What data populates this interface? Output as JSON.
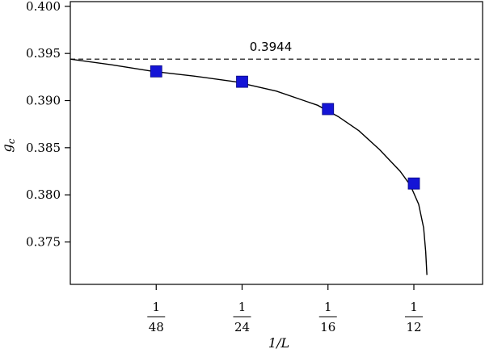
{
  "chart_data": {
    "type": "scatter",
    "xlabel": "1/L",
    "ylabel": "g_c",
    "xlim": [
      0,
      0.1
    ],
    "ylim": [
      0.3705,
      0.4005
    ],
    "y_ticks": [
      "0.400",
      "0.395",
      "0.390",
      "0.385",
      "0.380",
      "0.375"
    ],
    "x_ticks": [
      {
        "num": "1",
        "den": "48",
        "value": 0.020833
      },
      {
        "num": "1",
        "den": "24",
        "value": 0.041667
      },
      {
        "num": "1",
        "den": "16",
        "value": 0.0625
      },
      {
        "num": "1",
        "den": "12",
        "value": 0.083333
      }
    ],
    "series": [
      {
        "marker": "square",
        "color": "#1515d6",
        "points": [
          {
            "x": 0.020833,
            "y": 0.3931
          },
          {
            "x": 0.041667,
            "y": 0.392
          },
          {
            "x": 0.0625,
            "y": 0.3891
          },
          {
            "x": 0.083333,
            "y": 0.3812
          }
        ]
      }
    ],
    "fit_curve": {
      "color": "#000000",
      "points": [
        {
          "x": 0.0,
          "y": 0.3944
        },
        {
          "x": 0.01,
          "y": 0.3938
        },
        {
          "x": 0.02,
          "y": 0.3931
        },
        {
          "x": 0.03,
          "y": 0.3926
        },
        {
          "x": 0.04,
          "y": 0.392
        },
        {
          "x": 0.05,
          "y": 0.391
        },
        {
          "x": 0.06,
          "y": 0.3895
        },
        {
          "x": 0.065,
          "y": 0.3883
        },
        {
          "x": 0.07,
          "y": 0.3868
        },
        {
          "x": 0.075,
          "y": 0.3848
        },
        {
          "x": 0.08,
          "y": 0.3825
        },
        {
          "x": 0.0825,
          "y": 0.381
        },
        {
          "x": 0.0845,
          "y": 0.379
        },
        {
          "x": 0.0857,
          "y": 0.3765
        },
        {
          "x": 0.0862,
          "y": 0.374
        },
        {
          "x": 0.0865,
          "y": 0.3715
        }
      ]
    },
    "reference_line": {
      "y": 0.3944,
      "style": "dashed",
      "label": "0.3944"
    },
    "grid": false,
    "legend": "none"
  }
}
